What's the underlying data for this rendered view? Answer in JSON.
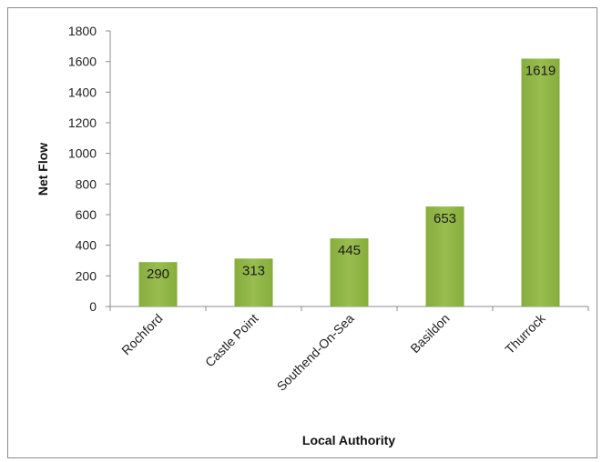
{
  "chart_data": {
    "type": "bar",
    "categories": [
      "Rochford",
      "Castle Point",
      "Southend-On-Sea",
      "Basildon",
      "Thurrock"
    ],
    "values": [
      290,
      313,
      445,
      653,
      1619
    ],
    "data_labels": [
      "290",
      "313",
      "445",
      "653",
      "1619"
    ],
    "title": "",
    "xlabel": "Local Authority",
    "ylabel": "Net Flow",
    "ylim": [
      0,
      1800
    ],
    "yticks": [
      0,
      200,
      400,
      600,
      800,
      1000,
      1200,
      1400,
      1600,
      1800
    ],
    "grid": false,
    "legend": "none",
    "bar_color": "#8db043"
  }
}
